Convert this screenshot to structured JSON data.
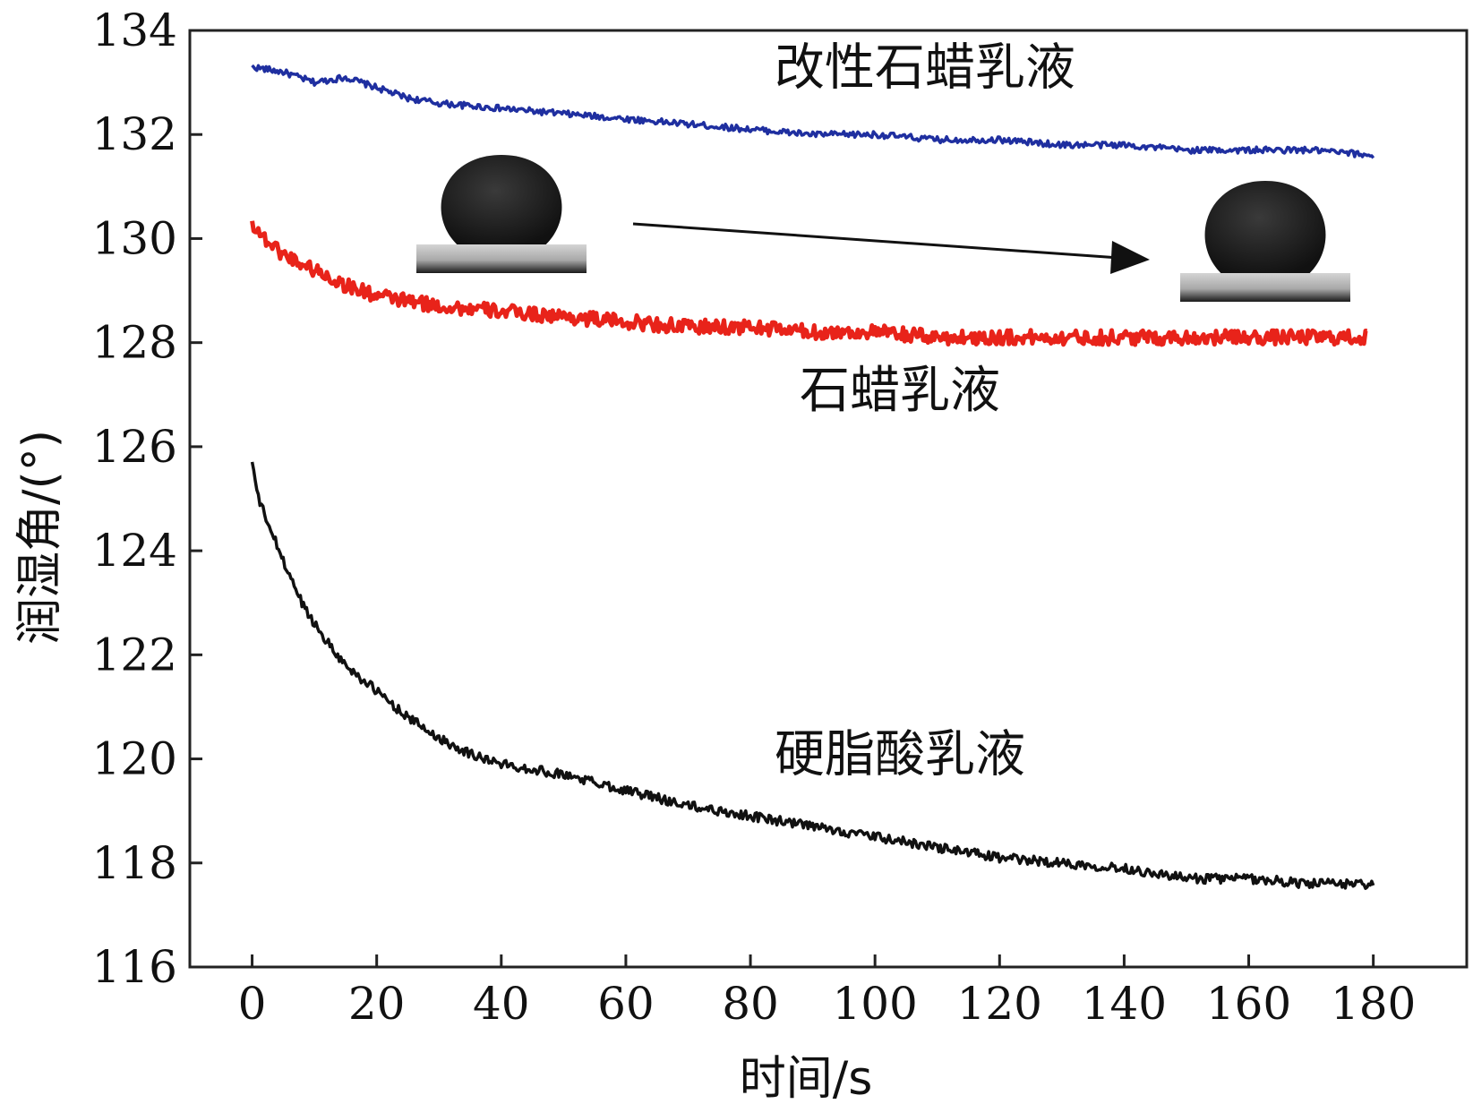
{
  "chart_data": {
    "type": "line",
    "xlabel": "时间/s",
    "ylabel": "润湿角/(°)",
    "xlim": [
      -10,
      195
    ],
    "ylim": [
      116,
      134
    ],
    "xticks": [
      0,
      20,
      40,
      60,
      80,
      100,
      120,
      140,
      160,
      180
    ],
    "yticks": [
      116,
      118,
      120,
      122,
      124,
      126,
      128,
      130,
      132,
      134
    ],
    "grid": false,
    "series": [
      {
        "name": "改性石蜡乳液",
        "color": "#1f2fa0",
        "x": [
          0,
          5,
          10,
          15,
          20,
          25,
          30,
          40,
          50,
          60,
          70,
          80,
          90,
          100,
          110,
          120,
          130,
          140,
          150,
          160,
          170,
          180
        ],
        "y": [
          133.3,
          133.2,
          133.0,
          133.1,
          132.9,
          132.7,
          132.6,
          132.5,
          132.4,
          132.3,
          132.2,
          132.1,
          132.0,
          132.0,
          131.9,
          131.9,
          131.8,
          131.8,
          131.7,
          131.7,
          131.7,
          131.6
        ]
      },
      {
        "name": "石蜡乳液",
        "color": "#e8231a",
        "x": [
          0,
          2,
          5,
          10,
          15,
          20,
          25,
          30,
          40,
          50,
          60,
          70,
          80,
          90,
          100,
          110,
          120,
          130,
          140,
          150,
          160,
          170,
          179
        ],
        "y": [
          130.3,
          130.0,
          129.7,
          129.4,
          129.1,
          128.9,
          128.8,
          128.7,
          128.6,
          128.5,
          128.4,
          128.3,
          128.3,
          128.2,
          128.2,
          128.1,
          128.1,
          128.1,
          128.1,
          128.1,
          128.1,
          128.1,
          128.1
        ]
      },
      {
        "name": "硬脂酸乳液",
        "color": "#111111",
        "x": [
          0,
          1,
          3,
          5,
          8,
          10,
          13,
          15,
          18,
          20,
          25,
          30,
          35,
          40,
          50,
          60,
          70,
          80,
          90,
          100,
          110,
          120,
          130,
          140,
          150,
          160,
          170,
          180
        ],
        "y": [
          125.7,
          125.0,
          124.4,
          123.8,
          123.0,
          122.6,
          122.1,
          121.8,
          121.5,
          121.3,
          120.8,
          120.4,
          120.1,
          119.9,
          119.7,
          119.4,
          119.1,
          118.9,
          118.7,
          118.5,
          118.3,
          118.1,
          118.0,
          117.9,
          117.7,
          117.7,
          117.6,
          117.6
        ]
      }
    ],
    "annotations": [
      {
        "text": "改性石蜡乳液",
        "x": 108,
        "y": 133.3
      },
      {
        "text": "石蜡乳液",
        "x": 104,
        "y": 127.1
      },
      {
        "text": "硬脂酸乳液",
        "x": 104,
        "y": 120.1
      }
    ]
  }
}
